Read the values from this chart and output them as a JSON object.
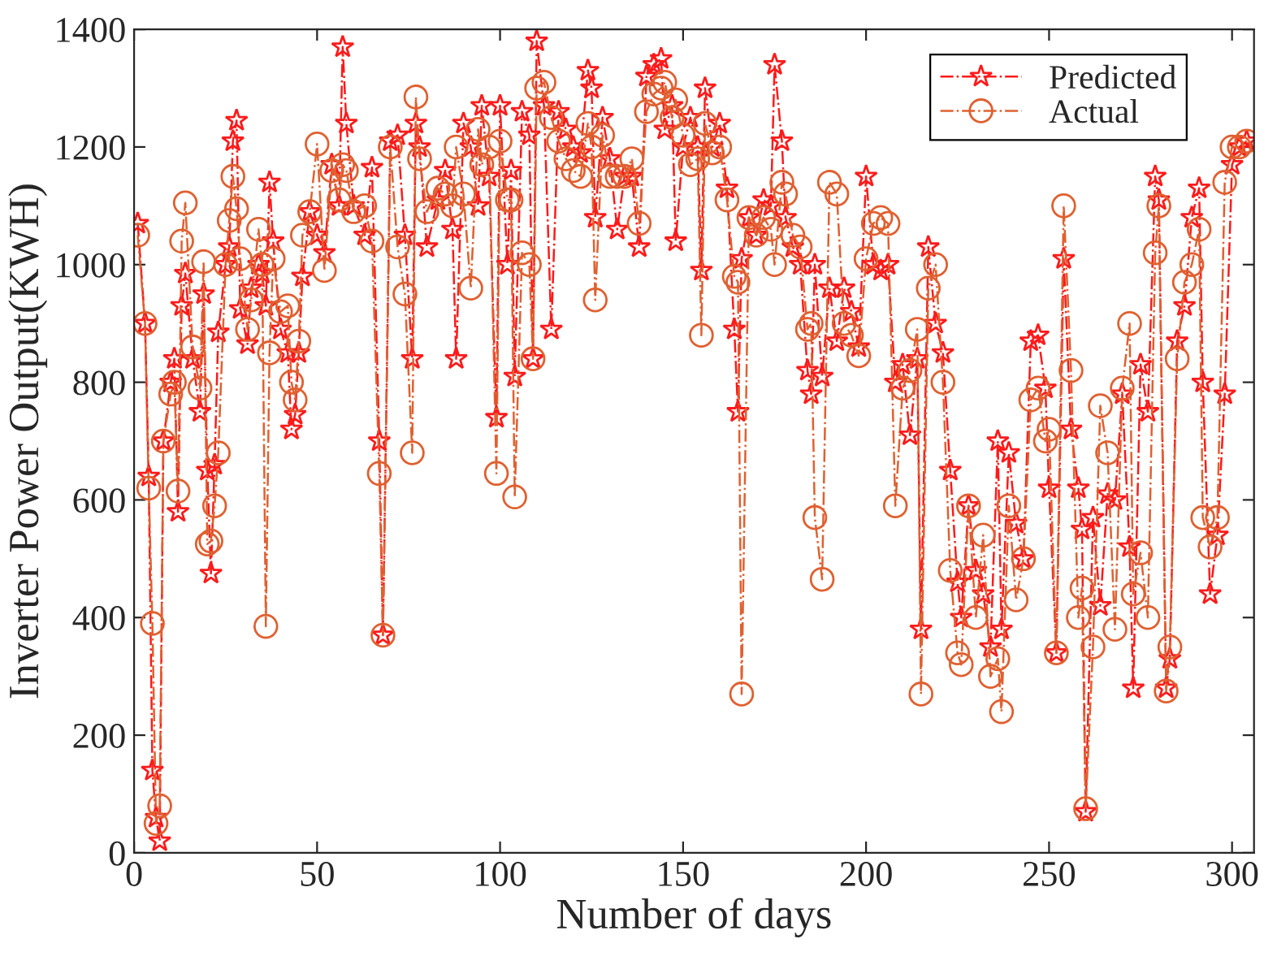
{
  "chart_data": {
    "type": "line",
    "xlabel": "Number of days",
    "ylabel": "Inverter Power Output(KWH)",
    "x": [
      1,
      3,
      4,
      5,
      6,
      7,
      8,
      10,
      11,
      12,
      13,
      14,
      16,
      18,
      19,
      20,
      21,
      22,
      23,
      25,
      26,
      27,
      28,
      29,
      31,
      32,
      34,
      35,
      36,
      37,
      38,
      40,
      42,
      43,
      44,
      45,
      46,
      48,
      50,
      52,
      54,
      56,
      57,
      58,
      60,
      63,
      65,
      67,
      68,
      70,
      72,
      74,
      76,
      77,
      78,
      80,
      83,
      85,
      87,
      88,
      90,
      92,
      94,
      95,
      97,
      99,
      100,
      102,
      103,
      104,
      106,
      108,
      109,
      110,
      112,
      114,
      116,
      118,
      120,
      122,
      124,
      125,
      126,
      128,
      130,
      132,
      134,
      136,
      138,
      140,
      142,
      144,
      145,
      147,
      148,
      150,
      152,
      154,
      155,
      156,
      158,
      160,
      162,
      164,
      165,
      166,
      168,
      170,
      172,
      174,
      175,
      177,
      178,
      180,
      182,
      184,
      185,
      186,
      188,
      190,
      192,
      194,
      196,
      198,
      200,
      202,
      204,
      206,
      208,
      210,
      212,
      214,
      215,
      217,
      219,
      221,
      223,
      225,
      226,
      228,
      230,
      232,
      234,
      236,
      237,
      239,
      241,
      243,
      245,
      247,
      249,
      250,
      252,
      254,
      256,
      258,
      259,
      260,
      262,
      264,
      266,
      268,
      270,
      272,
      273,
      275,
      277,
      279,
      280,
      282,
      283,
      285,
      287,
      289,
      291,
      292,
      294,
      296,
      298,
      300,
      302,
      304
    ],
    "series": [
      {
        "name": "Predicted",
        "color": "#ff1a1a",
        "marker": "star",
        "values": [
          1070,
          900,
          640,
          140,
          60,
          20,
          700,
          800,
          840,
          580,
          930,
          985,
          840,
          750,
          950,
          650,
          475,
          660,
          885,
          1000,
          1030,
          1210,
          1245,
          925,
          865,
          960,
          1000,
          985,
          930,
          1140,
          1040,
          890,
          850,
          720,
          745,
          850,
          980,
          1090,
          1050,
          1020,
          1170,
          1100,
          1370,
          1240,
          1100,
          1050,
          1165,
          700,
          370,
          1210,
          1220,
          1050,
          840,
          1240,
          1200,
          1030,
          1110,
          1160,
          1060,
          840,
          1240,
          1200,
          1100,
          1270,
          1150,
          740,
          1270,
          1000,
          1160,
          810,
          1260,
          1220,
          840,
          1380,
          1270,
          890,
          1260,
          1230,
          1200,
          1190,
          1330,
          1300,
          1080,
          1250,
          1180,
          1060,
          1150,
          1150,
          1030,
          1320,
          1340,
          1350,
          1230,
          1270,
          1040,
          1200,
          1250,
          1200,
          990,
          1300,
          1200,
          1240,
          1130,
          890,
          750,
          1010,
          1080,
          1050,
          1110,
          1100,
          1340,
          1210,
          1080,
          1030,
          1000,
          820,
          780,
          1000,
          810,
          960,
          870,
          960,
          920,
          860,
          1150,
          1000,
          990,
          1000,
          800,
          830,
          710,
          840,
          380,
          1030,
          900,
          850,
          650,
          460,
          400,
          590,
          480,
          440,
          350,
          700,
          380,
          680,
          560,
          500,
          870,
          880,
          790,
          620,
          340,
          1010,
          720,
          620,
          550,
          70,
          570,
          420,
          610,
          600,
          780,
          520,
          280,
          830,
          750,
          1150,
          1110,
          280,
          330,
          870,
          930,
          1080,
          1130,
          800,
          440,
          540,
          780,
          1170,
          1200,
          1210
        ]
      },
      {
        "name": "Actual",
        "color": "#e06030",
        "marker": "circle",
        "values": [
          1050,
          900,
          620,
          390,
          50,
          80,
          700,
          780,
          800,
          615,
          1040,
          1105,
          860,
          790,
          1005,
          525,
          530,
          590,
          680,
          1000,
          1075,
          1150,
          1095,
          1010,
          890,
          940,
          1060,
          1000,
          385,
          850,
          1010,
          920,
          930,
          800,
          770,
          870,
          1050,
          1090,
          1205,
          990,
          1160,
          1110,
          1170,
          1160,
          1090,
          1100,
          1040,
          645,
          370,
          1200,
          1030,
          950,
          680,
          1285,
          1180,
          1090,
          1130,
          1120,
          1100,
          1200,
          1120,
          960,
          1230,
          1170,
          1200,
          645,
          1210,
          1110,
          1110,
          605,
          1020,
          1000,
          840,
          1300,
          1310,
          1250,
          1210,
          1180,
          1160,
          1150,
          1240,
          1200,
          940,
          1220,
          1150,
          1150,
          1150,
          1180,
          1070,
          1260,
          1290,
          1300,
          1310,
          1250,
          1280,
          1220,
          1170,
          1180,
          880,
          1240,
          1190,
          1200,
          1110,
          980,
          970,
          270,
          1080,
          1050,
          1080,
          1060,
          1000,
          1140,
          1120,
          1050,
          1030,
          890,
          900,
          570,
          465,
          1140,
          1120,
          900,
          880,
          845,
          1010,
          1070,
          1080,
          1070,
          590,
          790,
          820,
          890,
          270,
          960,
          1000,
          800,
          480,
          340,
          320,
          590,
          400,
          540,
          300,
          330,
          240,
          590,
          430,
          500,
          770,
          790,
          700,
          720,
          340,
          1100,
          820,
          400,
          450,
          75,
          350,
          760,
          680,
          380,
          790,
          900,
          440,
          510,
          400,
          1020,
          1100,
          275,
          350,
          840,
          970,
          1000,
          1060,
          570,
          520,
          570,
          1140,
          1200,
          1200,
          1210
        ]
      }
    ],
    "xlim": [
      0,
      306
    ],
    "ylim": [
      0,
      1400
    ],
    "xticks": [
      0,
      50,
      100,
      150,
      200,
      250,
      300
    ],
    "yticks": [
      0,
      200,
      400,
      600,
      800,
      1000,
      1200,
      1400
    ],
    "line_style": "dashdot",
    "legend": "top right",
    "grid": false
  }
}
